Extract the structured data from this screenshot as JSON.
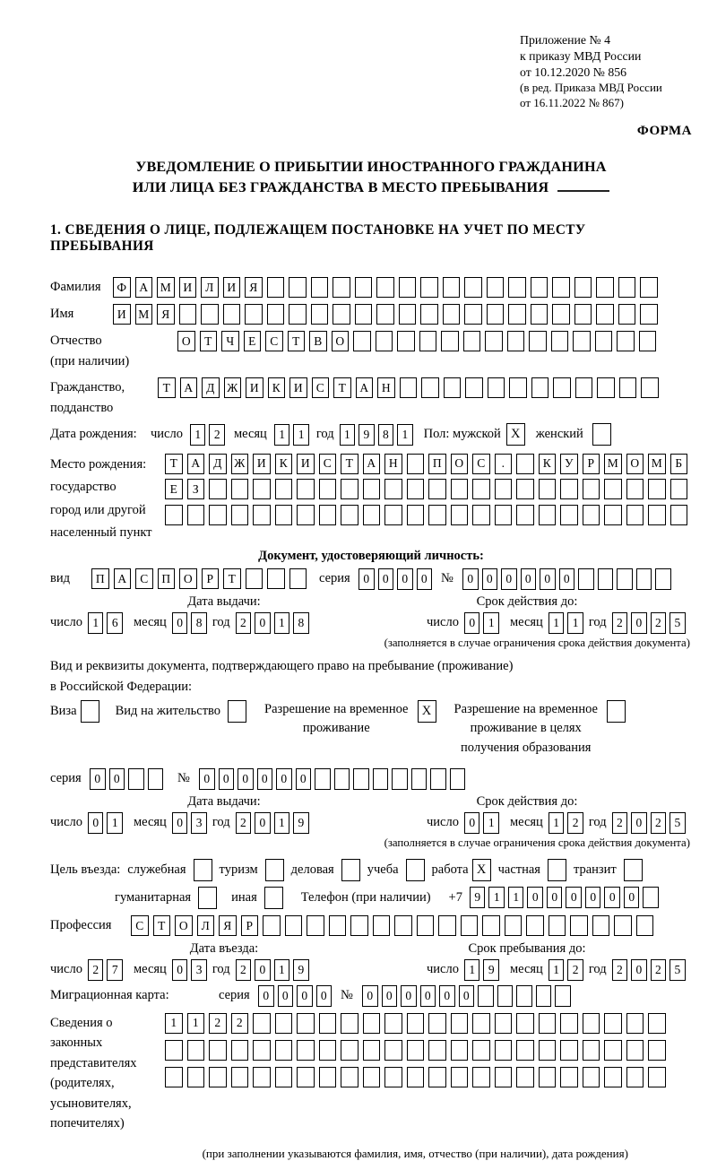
{
  "meta_block": {
    "line1": "Приложение № 4",
    "line2": "к приказу МВД России",
    "line3": "от 10.12.2020 № 856",
    "line4": "(в ред. Приказа МВД России",
    "line5": "от 16.11.2022 № 867)",
    "forma": "ФОРМА"
  },
  "title": {
    "line1": "УВЕДОМЛЕНИЕ О ПРИБЫТИИ ИНОСТРАННОГО ГРАЖДАНИНА",
    "line2": "ИЛИ ЛИЦА БЕЗ ГРАЖДАНСТВА В МЕСТО ПРЕБЫВАНИЯ"
  },
  "section1_heading": "1. СВЕДЕНИЯ О ЛИЦЕ, ПОДЛЕЖАЩЕМ ПОСТАНОВКЕ НА УЧЕТ ПО МЕСТУ ПРЕБЫВАНИЯ",
  "common": {
    "day": "число",
    "month": "месяц",
    "year": "год",
    "series": "серия",
    "num": "№"
  },
  "fields": {
    "surname": {
      "label": "Фамилия",
      "value": "ФАМИЛИЯ",
      "len": 25
    },
    "name": {
      "label": "Имя",
      "value": "ИМЯ",
      "len": 25
    },
    "patronymic": {
      "label": "Отчество",
      "sublabel": "(при наличии)",
      "value": "ОТЧЕСТВО",
      "len": 22
    },
    "citizenship": {
      "label": "Гражданство,",
      "sublabel": "подданство",
      "value": "ТАДЖИКИСТАН",
      "len": 23
    },
    "birth": {
      "label": "Дата рождения:",
      "day": "12",
      "month": "11",
      "year": "1981",
      "sex_label": "Пол: мужской",
      "male_checked": true,
      "female_label": "женский",
      "female_checked": false
    },
    "birthplace": {
      "label1": "Место рождения:",
      "label2": "государство",
      "label3": "город или другой",
      "label4": "населенный пункт",
      "rows": [
        {
          "value": "ТАДЖИКИСТАН ПОС. КУРМОМБ",
          "len": 24
        },
        {
          "value": "ЕЗ",
          "len": 24
        },
        {
          "value": "",
          "len": 24
        }
      ]
    }
  },
  "identity_doc": {
    "heading": "Документ, удостоверяющий личность:",
    "type_label": "вид",
    "type": {
      "value": "ПАСПОРТ",
      "len": 10
    },
    "series": {
      "value": "0000",
      "len": 4
    },
    "number": {
      "value": "000000",
      "len": 11
    },
    "issue_heading": "Дата выдачи:",
    "issue": {
      "day": "16",
      "month": "08",
      "year": "2018"
    },
    "expiry_heading": "Срок действия до:",
    "expiry": {
      "day": "01",
      "month": "11",
      "year": "2025"
    },
    "note": "(заполняется в случае ограничения срока действия документа)"
  },
  "residence": {
    "intro1": "Вид и реквизиты документа, подтверждающего право на пребывание (проживание)",
    "intro2": "в Российской Федерации:",
    "opt_visa": {
      "label": "Виза",
      "checked": false
    },
    "opt_residence_permit": {
      "label": "Вид на жительство",
      "checked": false
    },
    "opt_temp_residence": {
      "line1": "Разрешение на временное",
      "line2": "проживание",
      "checked": true
    },
    "opt_temp_education": {
      "line1": "Разрешение на временное",
      "line2": "проживание в целях",
      "line3": "получения образования",
      "checked": false
    },
    "series": {
      "value": "00",
      "len": 4
    },
    "number": {
      "value": "000000",
      "len": 14
    },
    "issue_heading": "Дата выдачи:",
    "issue": {
      "day": "01",
      "month": "03",
      "year": "2019"
    },
    "expiry_heading": "Срок действия до:",
    "expiry": {
      "day": "01",
      "month": "12",
      "year": "2025"
    },
    "note": "(заполняется в случае ограничения срока действия документа)"
  },
  "purpose": {
    "label": "Цель въезда:",
    "opts": [
      {
        "label": "служебная",
        "checked": false
      },
      {
        "label": "туризм",
        "checked": false
      },
      {
        "label": "деловая",
        "checked": false
      },
      {
        "label": "учеба",
        "checked": false
      },
      {
        "label": "работа",
        "checked": true
      },
      {
        "label": "частная",
        "checked": false
      },
      {
        "label": "транзит",
        "checked": false
      }
    ],
    "opt_humanitarian": {
      "label": "гуманитарная",
      "checked": false
    },
    "opt_other": {
      "label": "иная",
      "checked": false
    },
    "phone_label": "Телефон (при наличии)",
    "phone_prefix": "+7",
    "phone": {
      "value": "911000000",
      "len": 10
    },
    "profession_label": "Профессия",
    "profession": {
      "value": "СТОЛЯР",
      "len": 24
    }
  },
  "entry": {
    "date_heading": "Дата въезда:",
    "date": {
      "day": "27",
      "month": "03",
      "year": "2019"
    },
    "stay_heading": "Срок пребывания до:",
    "stay": {
      "day": "19",
      "month": "12",
      "year": "2025"
    }
  },
  "migration": {
    "label": "Миграционная карта:",
    "series": {
      "value": "0000",
      "len": 4
    },
    "number": {
      "value": "000000",
      "len": 11
    }
  },
  "representatives": {
    "label1": "Сведения о",
    "label2": "законных",
    "label3": "представителях",
    "label4": "(родителях,",
    "label5": "усыновителях,",
    "label6": "попечителях)",
    "rows": [
      {
        "value": "1122",
        "len": 23
      },
      {
        "value": "",
        "len": 23
      },
      {
        "value": "",
        "len": 23
      }
    ],
    "note": "(при заполнении указываются фамилия, имя, отчество (при наличии), дата рождения)"
  }
}
